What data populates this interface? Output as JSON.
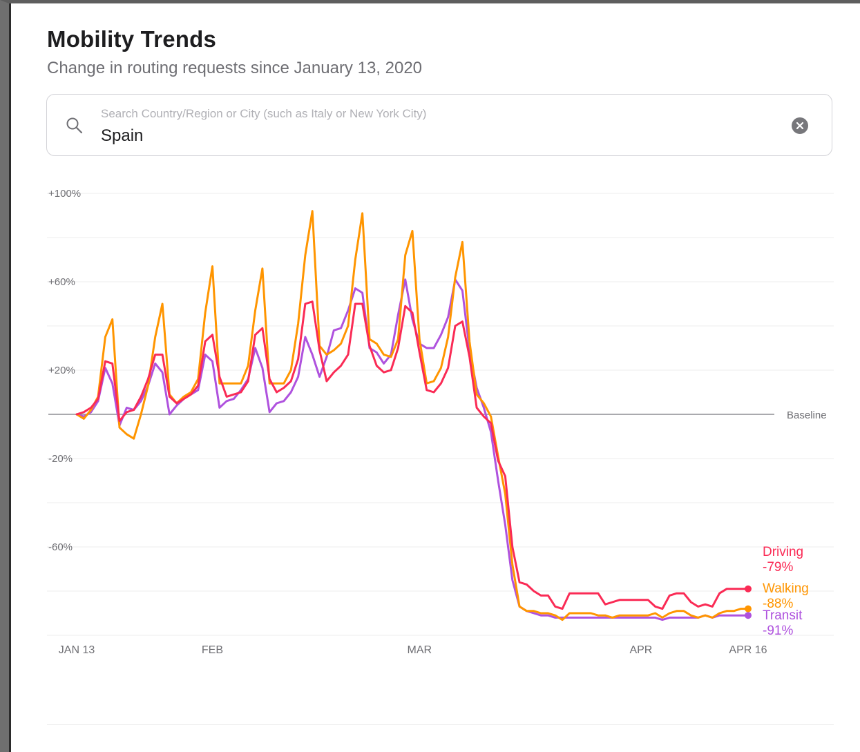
{
  "header": {
    "title": "Mobility Trends",
    "subtitle": "Change in routing requests since January 13, 2020"
  },
  "search": {
    "placeholder": "Search Country/Region or City (such as Italy or New York City)",
    "value": "Spain",
    "icon": "search-icon",
    "clear_icon": "clear-icon"
  },
  "chart_data": {
    "type": "line",
    "x_start": "JAN 13",
    "x_end": "APR 16",
    "y_ticks": [
      {
        "value": 100,
        "label": "+100%"
      },
      {
        "value": 60,
        "label": "+60%"
      },
      {
        "value": 20,
        "label": "+20%"
      },
      {
        "value": -20,
        "label": "-20%"
      },
      {
        "value": -60,
        "label": "-60%"
      }
    ],
    "ylim": [
      -100,
      100
    ],
    "baseline_label": "Baseline",
    "x_tick_labels": [
      {
        "day": 0,
        "label": "JAN 13"
      },
      {
        "day": 19,
        "label": "FEB"
      },
      {
        "day": 48,
        "label": "MAR"
      },
      {
        "day": 79,
        "label": "APR"
      },
      {
        "day": 94,
        "label": "APR 16"
      }
    ],
    "grid": true,
    "series": [
      {
        "name": "Driving",
        "end_label": "-79%",
        "color": "#fa2b55",
        "values": [
          0,
          1,
          3,
          7,
          24,
          23,
          -3,
          1,
          2,
          8,
          16,
          27,
          27,
          8,
          5,
          7,
          9,
          13,
          33,
          36,
          17,
          8,
          9,
          10,
          15,
          36,
          39,
          16,
          10,
          12,
          15,
          25,
          50,
          51,
          29,
          15,
          19,
          22,
          27,
          50,
          50,
          31,
          22,
          19,
          20,
          30,
          49,
          46,
          28,
          11,
          10,
          14,
          21,
          40,
          42,
          26,
          3,
          -1,
          -4,
          -21,
          -28,
          -60,
          -76,
          -77,
          -80,
          -82,
          -82,
          -87,
          -88,
          -81,
          -81,
          -81,
          -81,
          -81,
          -86,
          -85,
          -84,
          -84,
          -84,
          -84,
          -84,
          -87,
          -88,
          -82,
          -81,
          -81,
          -85,
          -87,
          -86,
          -87,
          -81,
          -79,
          -79,
          -79,
          -79
        ]
      },
      {
        "name": "Walking",
        "end_label": "-88%",
        "color": "#ff9500",
        "values": [
          0,
          -2,
          2,
          8,
          35,
          43,
          -6,
          -9,
          -11,
          0,
          13,
          35,
          50,
          9,
          5,
          8,
          10,
          16,
          46,
          67,
          14,
          14,
          14,
          14,
          22,
          47,
          66,
          14,
          14,
          14,
          20,
          41,
          72,
          92,
          31,
          27,
          29,
          32,
          40,
          70,
          91,
          34,
          32,
          27,
          26,
          34,
          72,
          83,
          34,
          14,
          15,
          21,
          35,
          62,
          78,
          33,
          9,
          5,
          -1,
          -19,
          -36,
          -68,
          -87,
          -89,
          -89,
          -90,
          -90,
          -91,
          -93,
          -90,
          -90,
          -90,
          -90,
          -91,
          -91,
          -92,
          -91,
          -91,
          -91,
          -91,
          -91,
          -90,
          -92,
          -90,
          -89,
          -89,
          -91,
          -92,
          -91,
          -92,
          -90,
          -89,
          -89,
          -88,
          -88
        ]
      },
      {
        "name": "Transit",
        "end_label": "-91%",
        "color": "#af52de",
        "values": [
          0,
          -1,
          1,
          6,
          21,
          14,
          -5,
          3,
          2,
          6,
          13,
          23,
          19,
          0,
          4,
          7,
          9,
          11,
          27,
          24,
          3,
          6,
          7,
          11,
          16,
          30,
          21,
          1,
          5,
          6,
          10,
          17,
          35,
          27,
          17,
          26,
          38,
          39,
          47,
          57,
          55,
          30,
          28,
          23,
          27,
          45,
          61,
          43,
          32,
          30,
          30,
          36,
          44,
          61,
          56,
          29,
          12,
          3,
          -8,
          -30,
          -50,
          -75,
          -87,
          -89,
          -90,
          -91,
          -91,
          -92,
          -92,
          -92,
          -92,
          -92,
          -92,
          -92,
          -92,
          -92,
          -92,
          -92,
          -92,
          -92,
          -92,
          -92,
          -93,
          -92,
          -92,
          -92,
          -92,
          -92,
          -91,
          -92,
          -91,
          -91,
          -91,
          -91,
          -91
        ]
      }
    ]
  }
}
